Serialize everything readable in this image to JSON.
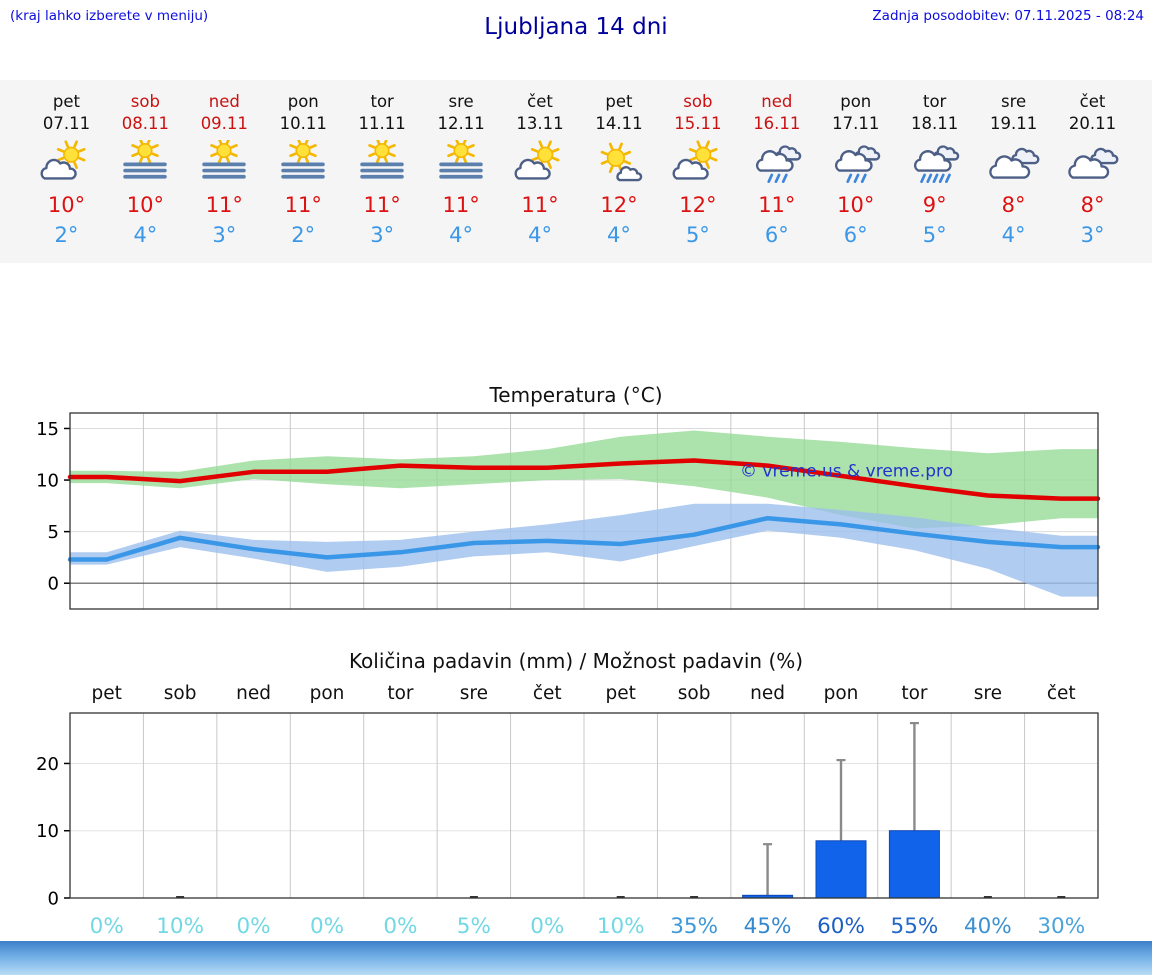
{
  "header": {
    "note": "(kraj lahko izberete v meniju)",
    "title": "Ljubljana 14 dni",
    "updated": "Zadnja posodobitev: 07.11.2025 - 08:24"
  },
  "forecast": {
    "days": [
      {
        "name": "pet",
        "date": "07.11",
        "weekend": false,
        "icon": "partly-sunny",
        "tmax": "10°",
        "tmin": "2°"
      },
      {
        "name": "sob",
        "date": "08.11",
        "weekend": true,
        "icon": "sun-fog",
        "tmax": "10°",
        "tmin": "4°"
      },
      {
        "name": "ned",
        "date": "09.11",
        "weekend": true,
        "icon": "sun-fog",
        "tmax": "11°",
        "tmin": "3°"
      },
      {
        "name": "pon",
        "date": "10.11",
        "weekend": false,
        "icon": "sun-fog",
        "tmax": "11°",
        "tmin": "2°"
      },
      {
        "name": "tor",
        "date": "11.11",
        "weekend": false,
        "icon": "sun-fog",
        "tmax": "11°",
        "tmin": "3°"
      },
      {
        "name": "sre",
        "date": "12.11",
        "weekend": false,
        "icon": "sun-fog",
        "tmax": "11°",
        "tmin": "4°"
      },
      {
        "name": "čet",
        "date": "13.11",
        "weekend": false,
        "icon": "partly-sunny",
        "tmax": "11°",
        "tmin": "4°"
      },
      {
        "name": "pet",
        "date": "14.11",
        "weekend": false,
        "icon": "mostly-sunny",
        "tmax": "12°",
        "tmin": "4°"
      },
      {
        "name": "sob",
        "date": "15.11",
        "weekend": true,
        "icon": "partly-sunny",
        "tmax": "12°",
        "tmin": "5°"
      },
      {
        "name": "ned",
        "date": "16.11",
        "weekend": true,
        "icon": "rain",
        "tmax": "11°",
        "tmin": "6°"
      },
      {
        "name": "pon",
        "date": "17.11",
        "weekend": false,
        "icon": "rain",
        "tmax": "10°",
        "tmin": "6°"
      },
      {
        "name": "tor",
        "date": "18.11",
        "weekend": false,
        "icon": "heavy-rain",
        "tmax": "9°",
        "tmin": "5°"
      },
      {
        "name": "sre",
        "date": "19.11",
        "weekend": false,
        "icon": "cloudy",
        "tmax": "8°",
        "tmin": "4°"
      },
      {
        "name": "čet",
        "date": "20.11",
        "weekend": false,
        "icon": "cloudy",
        "tmax": "8°",
        "tmin": "3°"
      }
    ]
  },
  "colors": {
    "temp_max_red": "#dd1111",
    "temp_min_blue": "#3a97e8",
    "weekend_red": "#cc1111",
    "bar_blue": "#1164ea",
    "band_green": "#90d890",
    "band_blue": "#9cbfec"
  },
  "chart_data": [
    {
      "type": "line",
      "title": "Temperatura (°C)",
      "categories": [
        "pet",
        "sob",
        "ned",
        "pon",
        "tor",
        "sre",
        "čet",
        "pet",
        "sob",
        "ned",
        "pon",
        "tor",
        "sre",
        "čet"
      ],
      "series": [
        {
          "name": "max-temp",
          "color": "#e00000",
          "values": [
            10.3,
            9.9,
            10.8,
            10.8,
            11.4,
            11.2,
            11.2,
            11.6,
            11.9,
            11.4,
            10.4,
            9.4,
            8.5,
            8.2
          ]
        },
        {
          "name": "min-temp",
          "color": "#3a97e8",
          "values": [
            2.3,
            4.4,
            3.3,
            2.5,
            3.0,
            3.9,
            4.1,
            3.8,
            4.7,
            6.3,
            5.7,
            4.8,
            4.0,
            3.5
          ]
        }
      ],
      "bands": [
        {
          "name": "max-temp-range",
          "color": "#90d890",
          "opacity": 0.75,
          "upper": [
            10.9,
            10.8,
            11.9,
            12.3,
            12.0,
            12.3,
            13.0,
            14.2,
            14.8,
            14.2,
            13.7,
            13.1,
            12.6,
            13.0
          ],
          "lower": [
            9.7,
            9.2,
            10.1,
            9.6,
            9.2,
            9.6,
            10.0,
            10.1,
            9.4,
            8.3,
            6.6,
            5.3,
            5.6,
            6.3
          ]
        },
        {
          "name": "min-temp-range",
          "color": "#9cbfec",
          "opacity": 0.8,
          "upper": [
            3.0,
            5.1,
            4.2,
            4.0,
            4.2,
            5.0,
            5.7,
            6.6,
            7.7,
            7.7,
            7.1,
            6.4,
            5.4,
            4.6
          ],
          "lower": [
            1.8,
            3.5,
            2.4,
            1.1,
            1.6,
            2.6,
            3.0,
            2.1,
            3.6,
            5.1,
            4.4,
            3.2,
            1.4,
            -1.3
          ]
        }
      ],
      "ylim": [
        -2.5,
        16.5
      ],
      "yticks": [
        0,
        5,
        10,
        15
      ],
      "xlabel": "",
      "ylabel": "",
      "grid": "vertical-day-boundaries",
      "legend": "none",
      "watermark": "© vreme.us & vreme.pro"
    },
    {
      "type": "bar",
      "title": "Količina padavin (mm) / Možnost padavin (%)",
      "categories": [
        "pet",
        "sob",
        "ned",
        "pon",
        "tor",
        "sre",
        "čet",
        "pet",
        "sob",
        "ned",
        "pon",
        "tor",
        "sre",
        "čet"
      ],
      "values": [
        0,
        0,
        0,
        0,
        0,
        0,
        0,
        0,
        0,
        0.4,
        8.5,
        10,
        0,
        0
      ],
      "whisker_max": [
        0,
        0,
        0,
        0,
        0,
        0,
        0,
        0,
        0,
        8,
        20.5,
        26,
        0,
        0
      ],
      "probabilities": [
        "0%",
        "10%",
        "0%",
        "0%",
        "0%",
        "5%",
        "0%",
        "10%",
        "35%",
        "45%",
        "60%",
        "55%",
        "40%",
        "30%"
      ],
      "prob_colors": [
        "#72d8e4",
        "#72d8e4",
        "#72d8e4",
        "#72d8e4",
        "#72d8e4",
        "#72d8e4",
        "#72d8e4",
        "#72d8e4",
        "#3e97d6",
        "#3488cf",
        "#1c5fc2",
        "#2368c6",
        "#3a90d2",
        "#4aa3da"
      ],
      "ylim": [
        0,
        27.5
      ],
      "yticks": [
        0,
        10,
        20
      ],
      "xlabel": "",
      "ylabel": "",
      "grid": "vertical-day-boundaries",
      "legend": "none"
    }
  ]
}
